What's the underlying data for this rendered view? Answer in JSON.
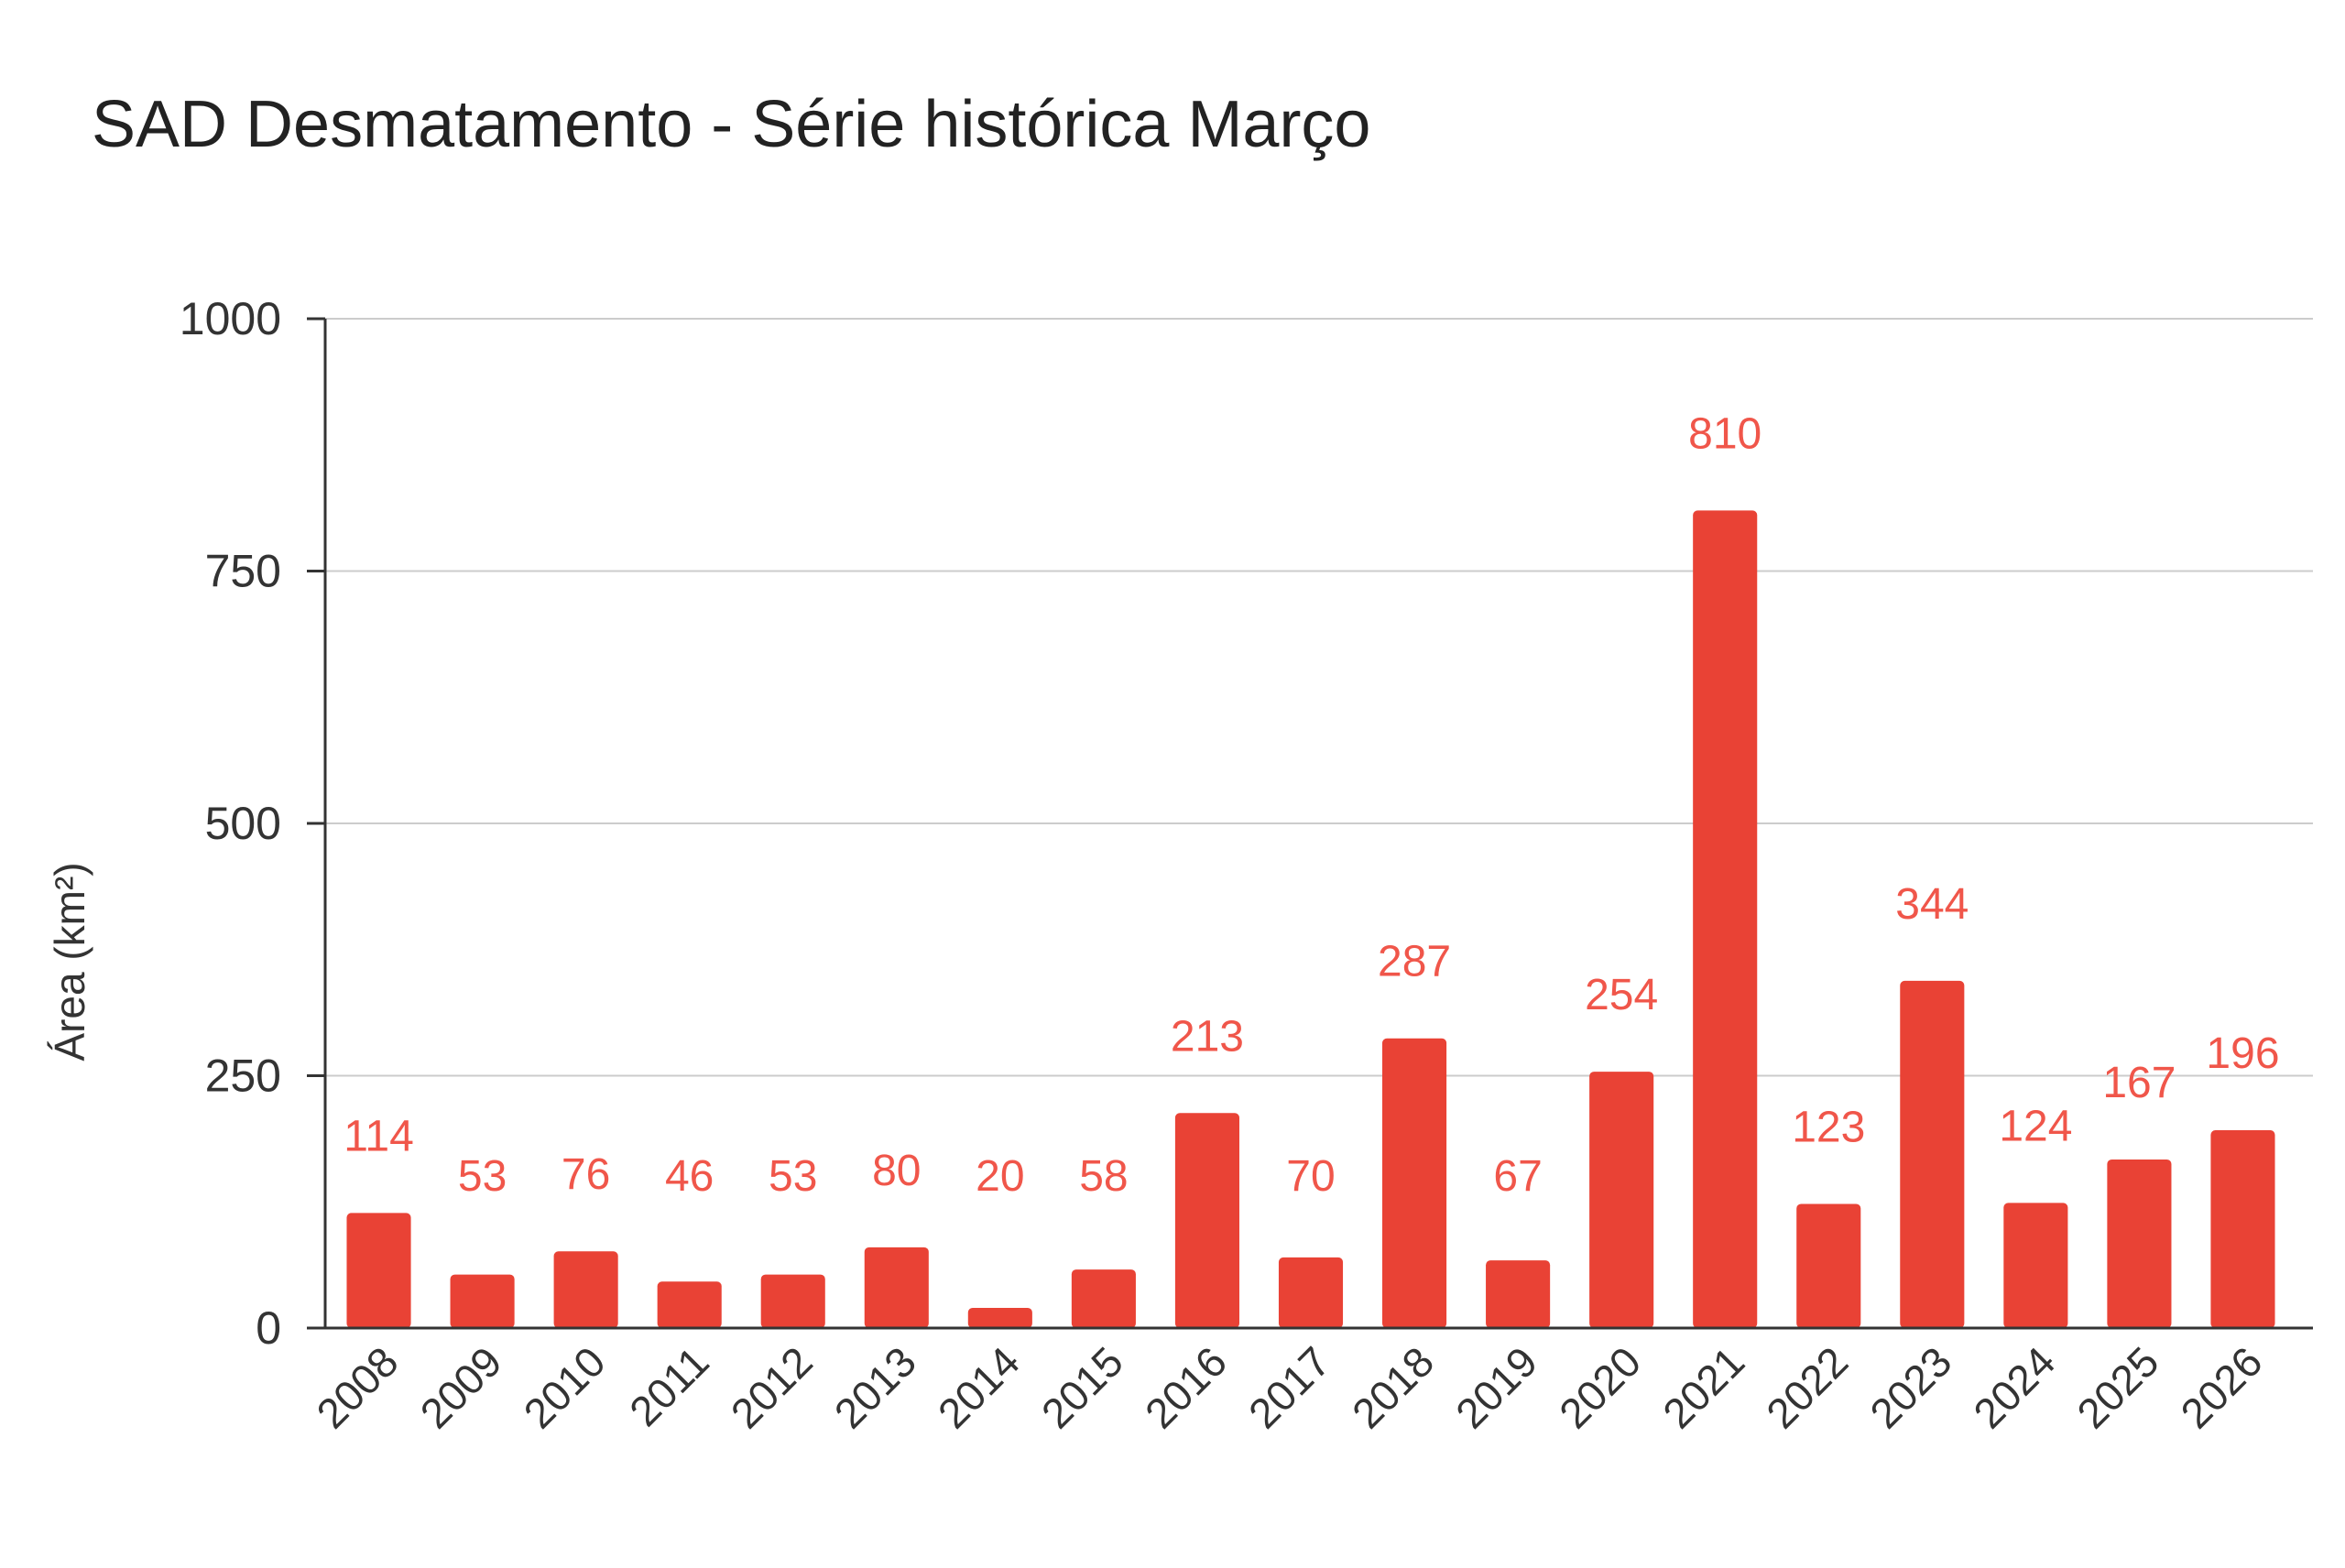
{
  "chart_data": {
    "type": "bar",
    "title": "SAD Desmatamento - Série histórica Março",
    "xlabel": "",
    "ylabel": "Área (km²)",
    "ylim": [
      0,
      1000
    ],
    "yticks": [
      0,
      250,
      500,
      750,
      1000
    ],
    "ytick_labels": [
      "0",
      "250",
      "500",
      "750",
      "1000"
    ],
    "grid": true,
    "categories": [
      "2008",
      "2009",
      "2010",
      "2011",
      "2012",
      "2013",
      "2014",
      "2015",
      "2016",
      "2017",
      "2018",
      "2019",
      "2020",
      "2021",
      "2022",
      "2023",
      "2024",
      "2025",
      "2026"
    ],
    "series": [
      {
        "values": [
          114,
          53,
          76,
          46,
          53,
          80,
          20,
          58,
          213,
          70,
          287,
          67,
          254,
          810,
          123,
          344,
          124,
          167,
          196
        ],
        "data_labels": [
          "114",
          "53",
          "76",
          "46",
          "53",
          "80",
          "20",
          "58",
          "213",
          "70",
          "287",
          "67",
          "254",
          "810",
          "123",
          "344",
          "124",
          "167",
          "196"
        ],
        "color": "#e94235"
      }
    ],
    "label_color": "#f0564a",
    "grid_color": "#cccccc",
    "axis_color": "#333333"
  }
}
